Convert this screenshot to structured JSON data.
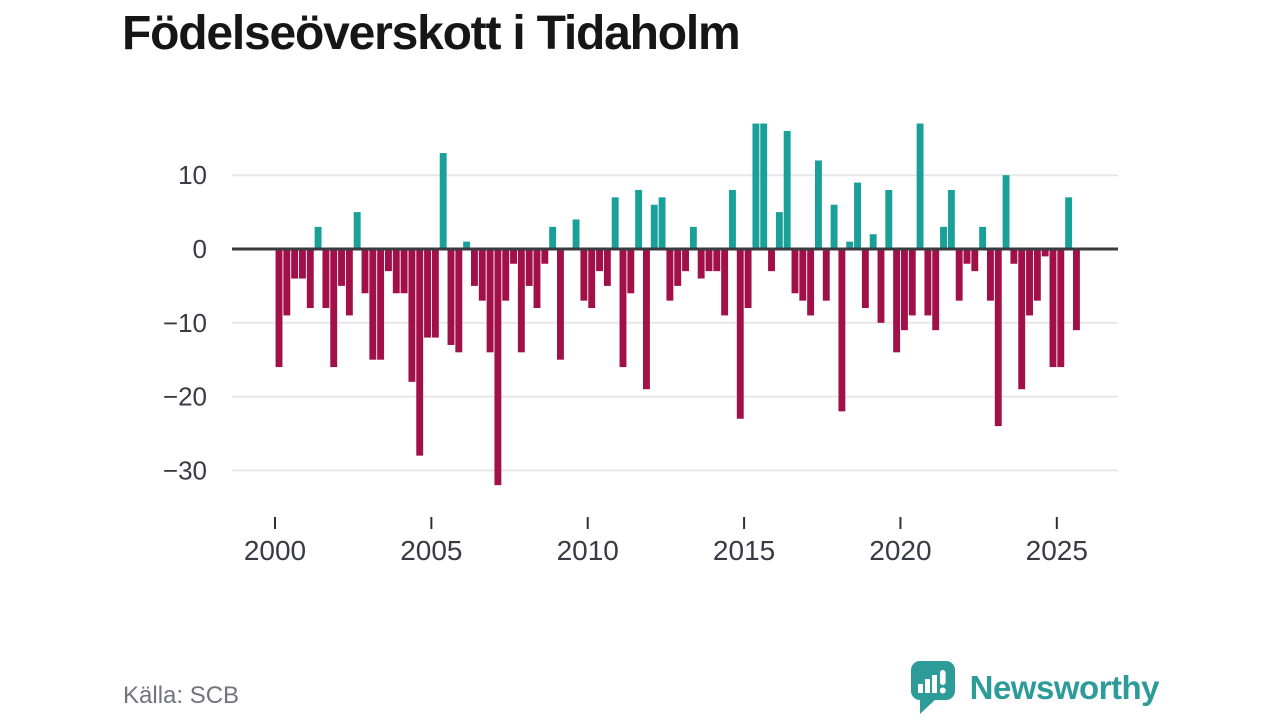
{
  "header": {
    "title": "Födelseöverskott i Tidaholm"
  },
  "footer": {
    "source": "Källa: SCB",
    "brand": "Newsworthy"
  },
  "colors": {
    "positive_bar": "#18a099",
    "negative_bar": "#a11048",
    "zero_line": "#3b3b3f",
    "gridline": "#e7e7e9",
    "brand_teal": "#2d9c98",
    "title_text": "#161616",
    "axis_text": "#3a3a44",
    "source_text": "#73737d"
  },
  "chart_data": {
    "type": "bar",
    "title": "Födelseöverskott i Tidaholm",
    "xlabel": "",
    "ylabel": "",
    "frequency": "quarterly",
    "start_period": "2000-Q1",
    "end_period": "2025-Q3",
    "grid": true,
    "legend": false,
    "ylim": [
      -33.5,
      18.5
    ],
    "y_ticks": [
      10,
      0,
      -10,
      -20,
      -30
    ],
    "y_tick_labels": [
      "10",
      "0",
      "−10",
      "−20",
      "−30"
    ],
    "x_tick_labels": [
      "2000",
      "2005",
      "2010",
      "2015",
      "2020",
      "2025"
    ],
    "values": [
      -16,
      -9,
      -4,
      -4,
      -8,
      3,
      -8,
      -16,
      -5,
      -9,
      5,
      -6,
      -15,
      -15,
      -3,
      -6,
      -6,
      -18,
      -28,
      -12,
      -12,
      13,
      -13,
      -14,
      1,
      -5,
      -7,
      -14,
      -32,
      -7,
      -2,
      -14,
      -5,
      -8,
      -2,
      3,
      -15,
      0,
      4,
      -7,
      -8,
      -3,
      -5,
      7,
      -16,
      -6,
      8,
      -19,
      6,
      7,
      -7,
      -5,
      -3,
      3,
      -4,
      -3,
      -3,
      -9,
      8,
      -23,
      -8,
      17,
      17,
      -3,
      5,
      16,
      -6,
      -7,
      -9,
      12,
      -7,
      6,
      -22,
      1,
      9,
      -8,
      2,
      -10,
      8,
      -14,
      -11,
      -9,
      17,
      -9,
      -11,
      3,
      8,
      -7,
      -2,
      -3,
      3,
      -7,
      -24,
      10,
      -2,
      -19,
      -9,
      -7,
      -1,
      -16,
      -16,
      7,
      -11
    ]
  }
}
